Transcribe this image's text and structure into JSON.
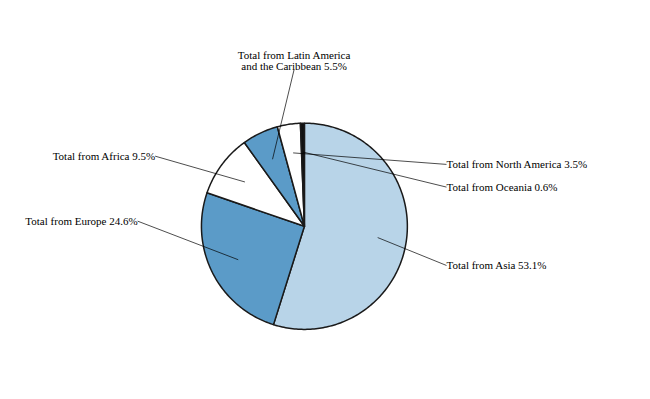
{
  "chart_data": {
    "type": "pie",
    "values": [
      53.1,
      24.6,
      9.5,
      5.5,
      3.5,
      0.6
    ],
    "colors": [
      "#b8d4e8",
      "#5b9bc8",
      "#ffffff",
      "#5b9bc8",
      "#ffffff",
      "#111111"
    ],
    "annotations": [
      "Total from Asia 53.1%",
      "Total from Europe 24.6%",
      "Total from Africa 9.5%",
      "Total from Latin America\nand the Caribbean 5.5%",
      "Total from North America 3.5%",
      "Total from Oceania 0.6%"
    ]
  }
}
